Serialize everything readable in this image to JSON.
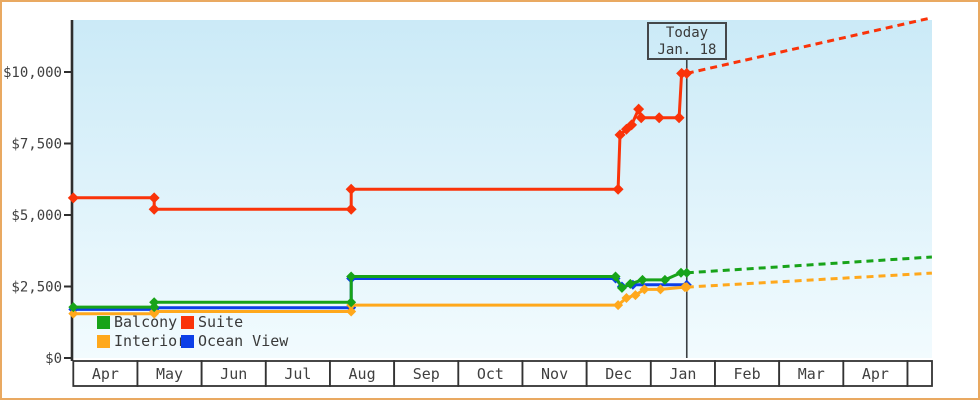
{
  "chart_data": {
    "type": "line",
    "title": "",
    "x_axis": {
      "months": [
        "Apr",
        "May",
        "Jun",
        "Jul",
        "Aug",
        "Sep",
        "Oct",
        "Nov",
        "Dec",
        "Jan",
        "Feb",
        "Mar",
        "Apr",
        ""
      ],
      "note": "step-style price history across 13 months, Apr through next Apr"
    },
    "y_axis": {
      "tick_labels": [
        "$0",
        "$2,500",
        "$5,000",
        "$7,500",
        "$10,000"
      ],
      "tick_values": [
        0,
        2500,
        5000,
        7500,
        10000
      ],
      "range": [
        0,
        12000
      ],
      "grid": false
    },
    "annotation": {
      "line1": "Today",
      "line2": "Jan. 18",
      "month_offset": 9.56
    },
    "legend_position": "bottom-left",
    "series": [
      {
        "name": "Balcony",
        "color": "#18a319",
        "points": [
          [
            0,
            1780
          ],
          [
            1.26,
            1780
          ],
          [
            1.26,
            1950
          ],
          [
            4.33,
            1950
          ],
          [
            4.33,
            2850
          ],
          [
            8.45,
            2850
          ],
          [
            8.55,
            2450
          ],
          [
            8.68,
            2590
          ],
          [
            8.87,
            2730
          ],
          [
            9.22,
            2730
          ],
          [
            9.47,
            2980
          ],
          [
            9.56,
            2980
          ]
        ],
        "projection": [
          [
            9.56,
            2980
          ],
          [
            13.38,
            3530
          ]
        ]
      },
      {
        "name": "Suite",
        "color": "#fa3309",
        "points": [
          [
            0,
            5600
          ],
          [
            1.26,
            5600
          ],
          [
            1.26,
            5200
          ],
          [
            4.33,
            5200
          ],
          [
            4.33,
            5900
          ],
          [
            8.49,
            5900
          ],
          [
            8.52,
            7800
          ],
          [
            8.62,
            8000
          ],
          [
            8.7,
            8150
          ],
          [
            8.81,
            8700
          ],
          [
            8.85,
            8400
          ],
          [
            9.13,
            8400
          ],
          [
            9.44,
            8400
          ],
          [
            9.48,
            9950
          ],
          [
            9.56,
            9950
          ]
        ],
        "projection": [
          [
            9.56,
            9950
          ],
          [
            13.38,
            11900
          ]
        ]
      },
      {
        "name": "Interior",
        "color": "#ffa81c",
        "points": [
          [
            0,
            1550
          ],
          [
            1.26,
            1550
          ],
          [
            1.26,
            1625
          ],
          [
            4.33,
            1625
          ],
          [
            4.33,
            1850
          ],
          [
            8.49,
            1850
          ],
          [
            8.62,
            2100
          ],
          [
            8.76,
            2200
          ],
          [
            8.9,
            2400
          ],
          [
            9.15,
            2400
          ],
          [
            9.53,
            2480
          ],
          [
            9.56,
            2480
          ]
        ],
        "projection": [
          [
            9.56,
            2480
          ],
          [
            13.38,
            2970
          ]
        ]
      },
      {
        "name": "Ocean View",
        "color": "#0c3fe8",
        "points": [
          [
            0,
            1700
          ],
          [
            1.26,
            1700
          ],
          [
            1.26,
            1760
          ],
          [
            4.33,
            1760
          ],
          [
            4.33,
            2780
          ],
          [
            8.45,
            2780
          ],
          [
            8.55,
            2500
          ],
          [
            8.72,
            2560
          ],
          [
            9.56,
            2560
          ]
        ],
        "projection": []
      }
    ],
    "colors": {
      "plot_bg_top": "#cbeaf7",
      "plot_bg_bottom": "#f2fbfe",
      "axis": "#2e2e2e",
      "text": "#3f3f3f",
      "frame_border": "#e9a961",
      "today_line": "#3c4043"
    }
  }
}
